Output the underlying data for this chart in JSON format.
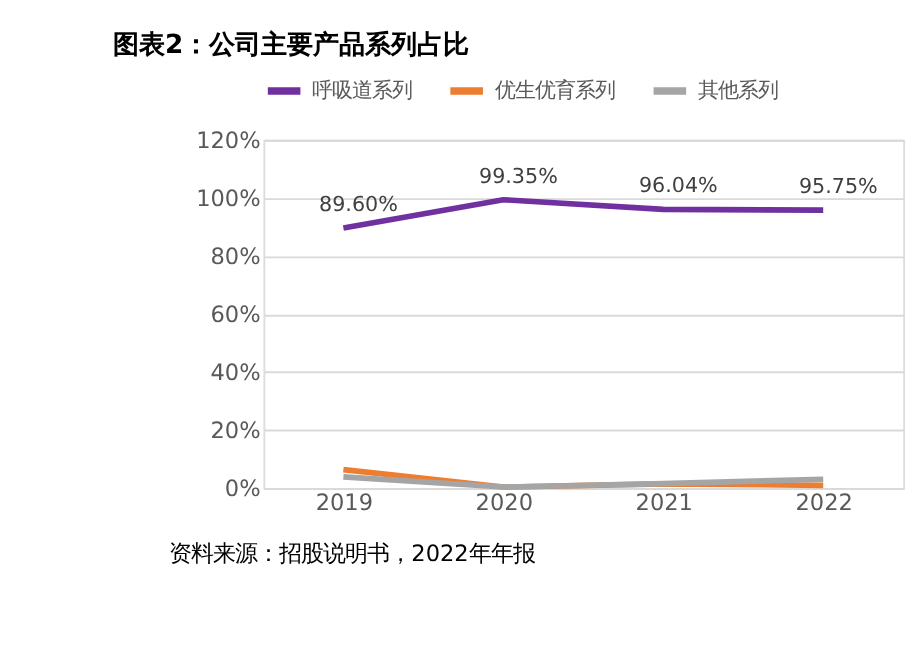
{
  "chart_data": {
    "type": "line",
    "title": "图表2：公司主要产品系列占比",
    "categories": [
      "2019",
      "2020",
      "2021",
      "2022"
    ],
    "series": [
      {
        "name": "呼吸道系列",
        "color": "#7030a0",
        "values": [
          89.6,
          99.35,
          96.04,
          95.75
        ],
        "value_labels": [
          "89.60%",
          "99.35%",
          "96.04%",
          "95.75%"
        ]
      },
      {
        "name": "优生优育系列",
        "color": "#ed7d31",
        "values": [
          6.3,
          0.3,
          1.4,
          0.9
        ]
      },
      {
        "name": "其他系列",
        "color": "#a5a5a5",
        "values": [
          3.8,
          0.3,
          1.5,
          3.0
        ]
      }
    ],
    "ylim": [
      0,
      120
    ],
    "yticks": [
      {
        "value": 0,
        "label": "0%"
      },
      {
        "value": 20,
        "label": "20%"
      },
      {
        "value": 40,
        "label": "40%"
      },
      {
        "value": 60,
        "label": "60%"
      },
      {
        "value": 80,
        "label": "80%"
      },
      {
        "value": 100,
        "label": "100%"
      },
      {
        "value": 120,
        "label": "120%"
      }
    ],
    "grid": "y",
    "legend": "top",
    "marker": "none",
    "line_style": "solid",
    "annotations": [
      "资料来源：招股说明书，2022年年报"
    ]
  }
}
